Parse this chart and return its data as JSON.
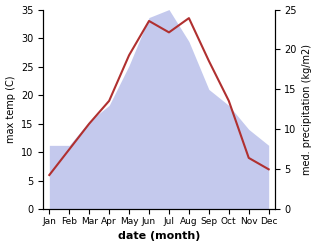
{
  "months": [
    "Jan",
    "Feb",
    "Mar",
    "Apr",
    "May",
    "Jun",
    "Jul",
    "Aug",
    "Sep",
    "Oct",
    "Nov",
    "Dec"
  ],
  "temp": [
    6,
    10.5,
    15,
    19,
    27,
    33,
    31,
    33.5,
    26,
    19,
    9,
    7
  ],
  "precip": [
    8,
    8,
    11,
    13,
    18,
    24,
    25,
    21,
    15,
    13,
    10,
    8
  ],
  "temp_ylim": [
    0,
    35
  ],
  "precip_ylim": [
    0,
    25
  ],
  "precip_yticks": [
    0,
    5,
    10,
    15,
    20,
    25
  ],
  "temp_yticks": [
    0,
    5,
    10,
    15,
    20,
    25,
    30,
    35
  ],
  "line_color": "#b03030",
  "fill_color": "#b0b8e8",
  "fill_alpha": 0.75,
  "xlabel": "date (month)",
  "ylabel_left": "max temp (C)",
  "ylabel_right": "med. precipitation (kg/m2)",
  "bg_color": "#ffffff"
}
